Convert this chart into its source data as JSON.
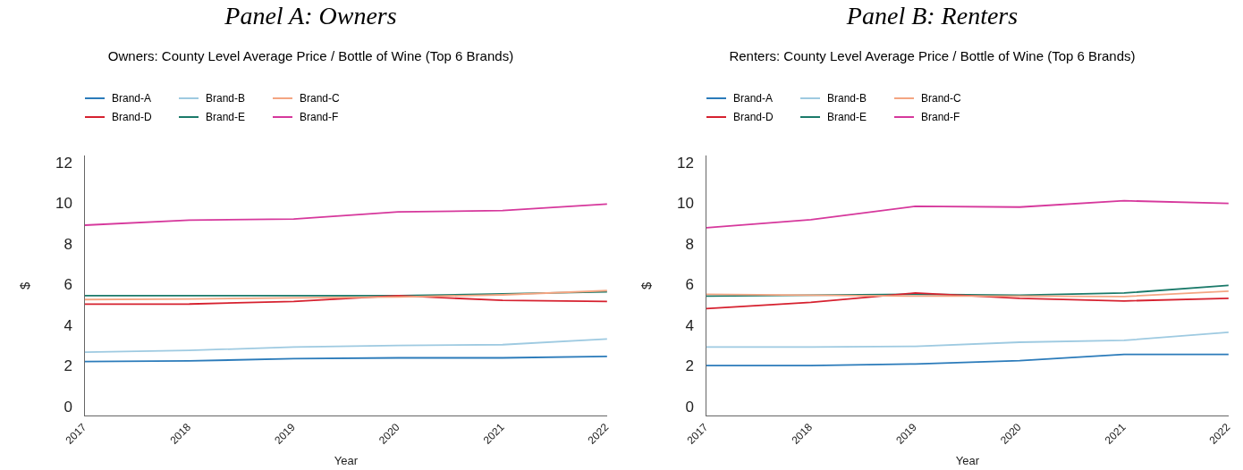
{
  "chart_data": [
    {
      "type": "line",
      "title": "Panel A: Owners",
      "subtitle": "Owners: County Level Average Price / Bottle of Wine (Top 6 Brands)",
      "xlabel": "Year",
      "ylabel": "$",
      "categories": [
        "2017",
        "2018",
        "2019",
        "2020",
        "2021",
        "2022"
      ],
      "ylim": [
        -0.4,
        12.4
      ],
      "yticks": [
        0,
        2,
        4,
        6,
        8,
        10,
        12
      ],
      "grid": false,
      "legend": "top left",
      "marker": "none",
      "line_style": "solid",
      "series": [
        {
          "name": "Brand-A",
          "color": "#2b7bba",
          "values": [
            2.27,
            2.3,
            2.41,
            2.45,
            2.45,
            2.52
          ]
        },
        {
          "name": "Brand-B",
          "color": "#9ecae1",
          "values": [
            2.73,
            2.82,
            2.98,
            3.06,
            3.1,
            3.38
          ]
        },
        {
          "name": "Brand-C",
          "color": "#f4a582",
          "values": [
            5.32,
            5.35,
            5.4,
            5.45,
            5.55,
            5.76
          ]
        },
        {
          "name": "Brand-D",
          "color": "#d6212f",
          "values": [
            5.09,
            5.1,
            5.23,
            5.51,
            5.28,
            5.23
          ]
        },
        {
          "name": "Brand-E",
          "color": "#1b7a6a",
          "values": [
            5.51,
            5.51,
            5.51,
            5.51,
            5.6,
            5.7
          ]
        },
        {
          "name": "Brand-F",
          "color": "#d6389c",
          "values": [
            8.98,
            9.23,
            9.28,
            9.63,
            9.7,
            10.02
          ]
        }
      ]
    },
    {
      "type": "line",
      "title": "Panel B: Renters",
      "subtitle": "Renters: County Level Average Price / Bottle of Wine (Top 6 Brands)",
      "xlabel": "Year",
      "ylabel": "$",
      "categories": [
        "2017",
        "2018",
        "2019",
        "2020",
        "2021",
        "2022"
      ],
      "ylim": [
        -0.4,
        12.4
      ],
      "yticks": [
        0,
        2,
        4,
        6,
        8,
        10,
        12
      ],
      "grid": false,
      "legend": "top left",
      "marker": "none",
      "line_style": "solid",
      "series": [
        {
          "name": "Brand-A",
          "color": "#2b7bba",
          "values": [
            2.07,
            2.07,
            2.15,
            2.31,
            2.62,
            2.62
          ]
        },
        {
          "name": "Brand-B",
          "color": "#9ecae1",
          "values": [
            2.98,
            2.98,
            3.02,
            3.22,
            3.31,
            3.71
          ]
        },
        {
          "name": "Brand-C",
          "color": "#f4a582",
          "values": [
            5.58,
            5.53,
            5.49,
            5.49,
            5.47,
            5.73
          ]
        },
        {
          "name": "Brand-D",
          "color": "#d6212f",
          "values": [
            4.87,
            5.18,
            5.64,
            5.38,
            5.25,
            5.38
          ]
        },
        {
          "name": "Brand-E",
          "color": "#1b7a6a",
          "values": [
            5.49,
            5.53,
            5.58,
            5.53,
            5.64,
            6.02
          ]
        },
        {
          "name": "Brand-F",
          "color": "#d6389c",
          "values": [
            8.85,
            9.25,
            9.91,
            9.87,
            10.18,
            10.05
          ]
        }
      ]
    }
  ]
}
